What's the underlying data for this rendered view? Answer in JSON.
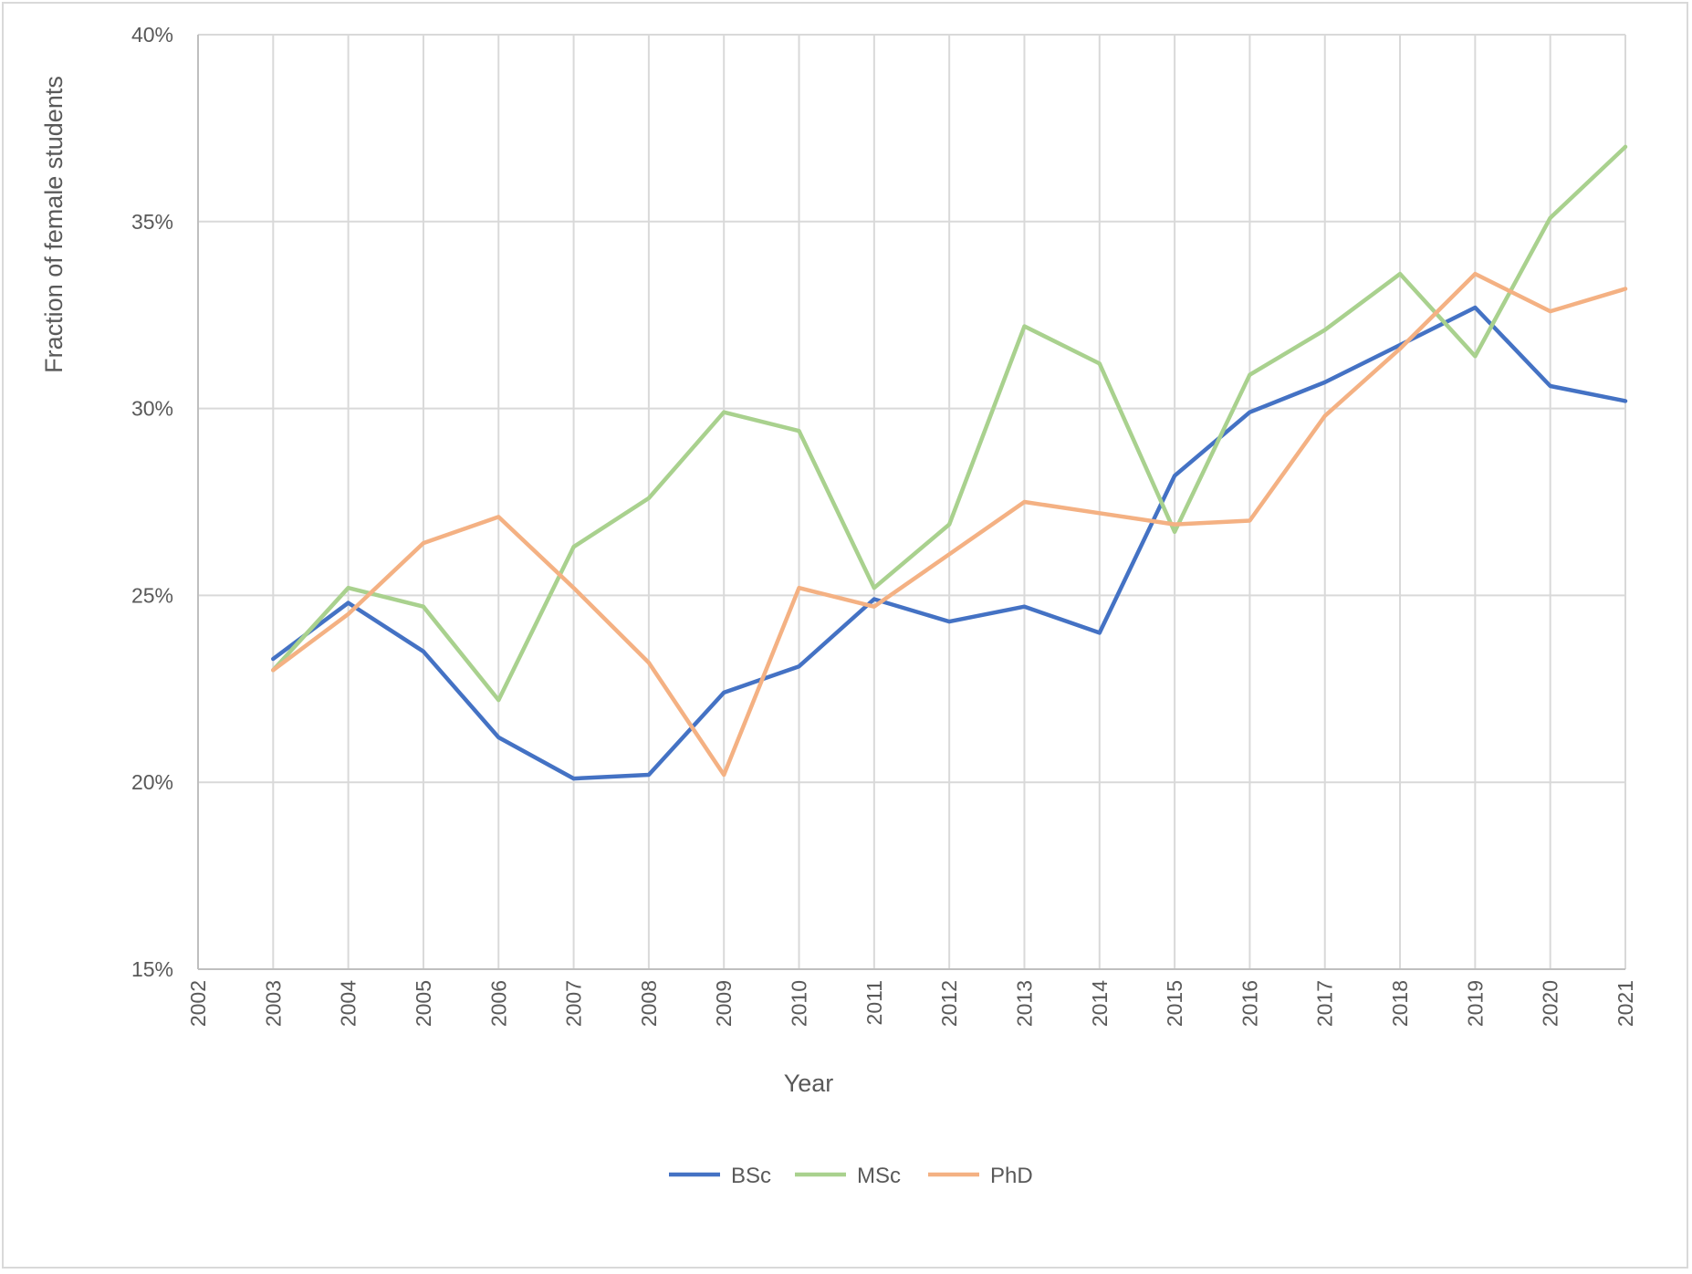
{
  "chart_data": {
    "type": "line",
    "title": "",
    "xlabel": "Year",
    "ylabel": "Fraction of female students",
    "x": [
      2002,
      2003,
      2004,
      2005,
      2006,
      2007,
      2008,
      2009,
      2010,
      2011,
      2012,
      2013,
      2014,
      2015,
      2016,
      2017,
      2018,
      2019,
      2020,
      2021
    ],
    "xlim": [
      2002,
      2021
    ],
    "ylim": [
      0.15,
      0.4
    ],
    "yticks": [
      0.15,
      0.2,
      0.25,
      0.3,
      0.35,
      0.4
    ],
    "ytick_labels": [
      "15%",
      "20%",
      "25%",
      "30%",
      "35%",
      "40%"
    ],
    "grid": true,
    "legend_position": "bottom",
    "series": [
      {
        "name": "BSc",
        "color": "#4472c4",
        "values": [
          null,
          0.233,
          0.248,
          0.235,
          0.212,
          0.201,
          0.202,
          0.224,
          0.231,
          0.249,
          0.243,
          0.247,
          0.24,
          0.282,
          0.299,
          0.307,
          0.317,
          0.327,
          0.306,
          0.302
        ]
      },
      {
        "name": "MSc",
        "color": "#a9d18e",
        "values": [
          null,
          0.23,
          0.252,
          0.247,
          0.222,
          0.263,
          0.276,
          0.299,
          0.294,
          0.252,
          0.269,
          0.322,
          0.312,
          0.267,
          0.309,
          0.321,
          0.336,
          0.314,
          0.351,
          0.37
        ]
      },
      {
        "name": "PhD",
        "color": "#f4b183",
        "values": [
          null,
          0.23,
          0.245,
          0.264,
          0.271,
          0.252,
          0.232,
          0.202,
          0.252,
          0.247,
          0.261,
          0.275,
          0.272,
          0.269,
          0.27,
          0.298,
          0.316,
          0.336,
          0.326,
          0.332
        ]
      }
    ]
  }
}
